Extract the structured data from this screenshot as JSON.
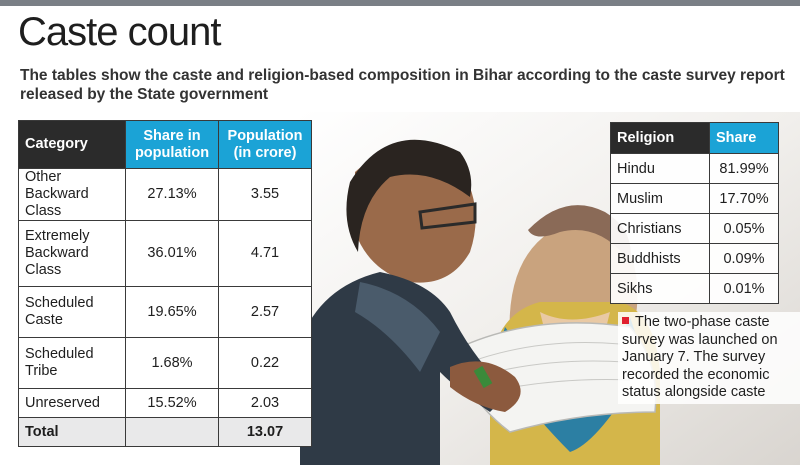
{
  "title": "Caste count",
  "subtitle": "The tables show the caste and religion-based composition in Bihar according to the caste survey report released by the State government",
  "caste_table": {
    "headers": [
      "Category",
      "Share in population",
      "Population (in crore)"
    ],
    "rows": [
      {
        "category": "Other Backward Class",
        "share": "27.13%",
        "population": "3.55"
      },
      {
        "category": "Extremely Backward Class",
        "share": "36.01%",
        "population": "4.71"
      },
      {
        "category": "Scheduled Caste",
        "share": "19.65%",
        "population": "2.57"
      },
      {
        "category": "Scheduled Tribe",
        "share": "1.68%",
        "population": "0.22"
      },
      {
        "category": "Unreserved",
        "share": "15.52%",
        "population": "2.03"
      }
    ],
    "total_label": "Total",
    "total_share": "",
    "total_population": "13.07"
  },
  "religion_table": {
    "headers": [
      "Religion",
      "Share"
    ],
    "rows": [
      {
        "religion": "Hindu",
        "share": "81.99%"
      },
      {
        "religion": "Muslim",
        "share": "17.70%"
      },
      {
        "religion": "Christians",
        "share": "0.05%"
      },
      {
        "religion": "Buddhists",
        "share": "0.09%"
      },
      {
        "religion": "Sikhs",
        "share": "0.01%"
      }
    ]
  },
  "note": "The two-phase caste survey was launched on January 7. The survey recorded the economic status alongside caste",
  "colors": {
    "header_dark": "#2b2b2b",
    "header_blue": "#1ba3d6",
    "bullet_red": "#e0202e"
  }
}
